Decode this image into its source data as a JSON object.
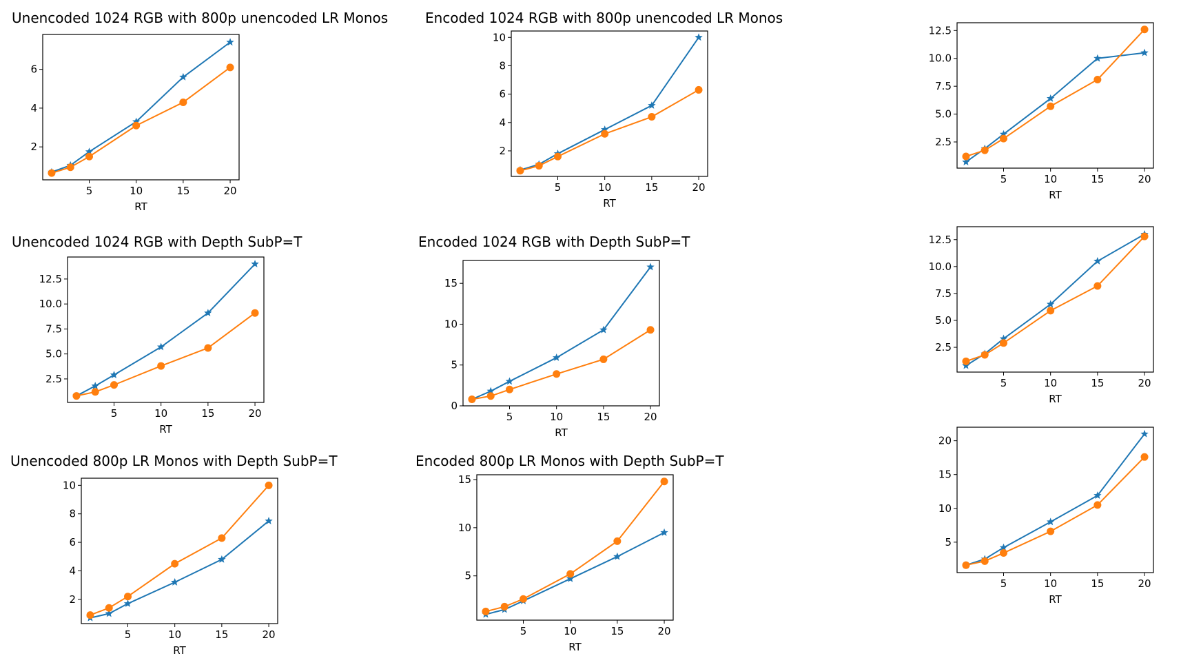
{
  "chart_data": [
    {
      "type": "line",
      "title": "Unencoded 1024 RGB with 800p unencoded LR Monos",
      "xlabel": "RT",
      "ylabel": "",
      "x": [
        1,
        3,
        5,
        10,
        15,
        20
      ],
      "xticks": [
        5,
        10,
        15,
        20
      ],
      "yticks": [
        2,
        4,
        6
      ],
      "xlim": [
        0.05,
        20.95
      ],
      "ylim": [
        0.3,
        7.8
      ],
      "series": [
        {
          "name": "",
          "color": "#1f77b4",
          "marker": "star",
          "values": [
            0.7,
            1.05,
            1.75,
            3.3,
            5.6,
            7.4
          ]
        },
        {
          "name": "",
          "color": "#ff7f0e",
          "marker": "circle",
          "values": [
            0.65,
            0.95,
            1.5,
            3.1,
            4.3,
            6.1
          ]
        }
      ]
    },
    {
      "type": "line",
      "title": "Encoded 1024 RGB with 800p unencoded LR Monos",
      "xlabel": "RT",
      "ylabel": "",
      "x": [
        1,
        3,
        5,
        10,
        15,
        20
      ],
      "xticks": [
        5,
        10,
        15,
        20
      ],
      "yticks": [
        2,
        4,
        6,
        8,
        10
      ],
      "xlim": [
        0.05,
        20.95
      ],
      "ylim": [
        0.2,
        10.45
      ],
      "series": [
        {
          "name": "",
          "color": "#1f77b4",
          "marker": "star",
          "values": [
            0.65,
            1.05,
            1.8,
            3.5,
            5.2,
            10.0
          ]
        },
        {
          "name": "",
          "color": "#ff7f0e",
          "marker": "circle",
          "values": [
            0.6,
            0.95,
            1.6,
            3.2,
            4.4,
            6.3
          ]
        }
      ]
    },
    {
      "type": "line",
      "title": "",
      "xlabel": "RT",
      "ylabel": "",
      "x": [
        1,
        3,
        5,
        10,
        15,
        20
      ],
      "xticks": [
        5,
        10,
        15,
        20
      ],
      "yticks": [
        2.5,
        5.0,
        7.5,
        10.0,
        12.5
      ],
      "tick_format": "1dp",
      "xlim": [
        0.05,
        20.95
      ],
      "ylim": [
        0.15,
        13.2
      ],
      "series": [
        {
          "name": "",
          "color": "#1f77b4",
          "marker": "star",
          "values": [
            0.7,
            1.9,
            3.2,
            6.4,
            10.0,
            10.5
          ]
        },
        {
          "name": "",
          "color": "#ff7f0e",
          "marker": "circle",
          "values": [
            1.2,
            1.75,
            2.8,
            5.7,
            8.1,
            12.6
          ]
        }
      ]
    },
    {
      "type": "line",
      "title": "Unencoded 1024 RGB with Depth SubP=T",
      "xlabel": "RT",
      "ylabel": "",
      "x": [
        1,
        3,
        5,
        10,
        15,
        20
      ],
      "xticks": [
        5,
        10,
        15,
        20
      ],
      "yticks": [
        2.5,
        5.0,
        7.5,
        10.0,
        12.5
      ],
      "tick_format": "1dp",
      "xlim": [
        0.05,
        20.95
      ],
      "ylim": [
        0.15,
        14.7
      ],
      "series": [
        {
          "name": "",
          "color": "#1f77b4",
          "marker": "star",
          "values": [
            0.8,
            1.8,
            2.9,
            5.7,
            9.1,
            14.0
          ]
        },
        {
          "name": "",
          "color": "#ff7f0e",
          "marker": "circle",
          "values": [
            0.8,
            1.2,
            1.9,
            3.8,
            5.6,
            9.1
          ]
        }
      ]
    },
    {
      "type": "line",
      "title": "Encoded 1024 RGB with Depth SubP=T",
      "xlabel": "RT",
      "ylabel": "",
      "x": [
        1,
        3,
        5,
        10,
        15,
        20
      ],
      "xticks": [
        5,
        10,
        15,
        20
      ],
      "yticks": [
        0,
        5,
        10,
        15
      ],
      "xlim": [
        0.05,
        20.95
      ],
      "ylim": [
        0.0,
        17.8
      ],
      "series": [
        {
          "name": "",
          "color": "#1f77b4",
          "marker": "star",
          "values": [
            0.8,
            1.8,
            3.0,
            5.9,
            9.3,
            17.0
          ]
        },
        {
          "name": "",
          "color": "#ff7f0e",
          "marker": "circle",
          "values": [
            0.8,
            1.2,
            2.0,
            3.9,
            5.7,
            9.3
          ]
        }
      ]
    },
    {
      "type": "line",
      "title": "",
      "xlabel": "RT",
      "ylabel": "",
      "x": [
        1,
        3,
        5,
        10,
        15,
        20
      ],
      "xticks": [
        5,
        10,
        15,
        20
      ],
      "yticks": [
        2.5,
        5.0,
        7.5,
        10.0,
        12.5
      ],
      "tick_format": "1dp",
      "xlim": [
        0.05,
        20.95
      ],
      "ylim": [
        0.2,
        13.7
      ],
      "series": [
        {
          "name": "",
          "color": "#1f77b4",
          "marker": "star",
          "values": [
            0.8,
            1.9,
            3.3,
            6.5,
            10.5,
            13.0
          ]
        },
        {
          "name": "",
          "color": "#ff7f0e",
          "marker": "circle",
          "values": [
            1.2,
            1.8,
            2.9,
            5.9,
            8.2,
            12.8
          ]
        }
      ]
    },
    {
      "type": "line",
      "title": "Unencoded 800p LR Monos with Depth SubP=T",
      "xlabel": "RT",
      "ylabel": "",
      "x": [
        1,
        3,
        5,
        10,
        15,
        20
      ],
      "xticks": [
        5,
        10,
        15,
        20
      ],
      "yticks": [
        2,
        4,
        6,
        8,
        10
      ],
      "xlim": [
        0.05,
        20.95
      ],
      "ylim": [
        0.3,
        10.5
      ],
      "series": [
        {
          "name": "",
          "color": "#1f77b4",
          "marker": "star",
          "values": [
            0.7,
            1.0,
            1.7,
            3.2,
            4.8,
            7.5
          ]
        },
        {
          "name": "",
          "color": "#ff7f0e",
          "marker": "circle",
          "values": [
            0.9,
            1.4,
            2.2,
            4.5,
            6.3,
            10.0
          ]
        }
      ]
    },
    {
      "type": "line",
      "title": "Encoded 800p LR Monos with Depth SubP=T",
      "xlabel": "RT",
      "ylabel": "",
      "x": [
        1,
        3,
        5,
        10,
        15,
        20
      ],
      "xticks": [
        5,
        10,
        15,
        20
      ],
      "yticks": [
        5,
        10,
        15
      ],
      "xlim": [
        0.05,
        20.95
      ],
      "ylim": [
        0.4,
        15.5
      ],
      "series": [
        {
          "name": "",
          "color": "#1f77b4",
          "marker": "star",
          "values": [
            1.0,
            1.5,
            2.4,
            4.7,
            7.0,
            9.5
          ]
        },
        {
          "name": "",
          "color": "#ff7f0e",
          "marker": "circle",
          "values": [
            1.3,
            1.8,
            2.6,
            5.2,
            8.6,
            14.8
          ]
        }
      ]
    },
    {
      "type": "line",
      "title": "",
      "xlabel": "RT",
      "ylabel": "",
      "x": [
        1,
        3,
        5,
        10,
        15,
        20
      ],
      "xticks": [
        5,
        10,
        15,
        20
      ],
      "yticks": [
        5,
        10,
        15,
        20
      ],
      "xlim": [
        0.05,
        20.95
      ],
      "ylim": [
        0.5,
        22.0
      ],
      "series": [
        {
          "name": "",
          "color": "#1f77b4",
          "marker": "star",
          "values": [
            1.6,
            2.5,
            4.2,
            8.0,
            11.9,
            21.0
          ]
        },
        {
          "name": "",
          "color": "#ff7f0e",
          "marker": "circle",
          "values": [
            1.6,
            2.2,
            3.4,
            6.6,
            10.5,
            17.6
          ]
        }
      ]
    }
  ]
}
